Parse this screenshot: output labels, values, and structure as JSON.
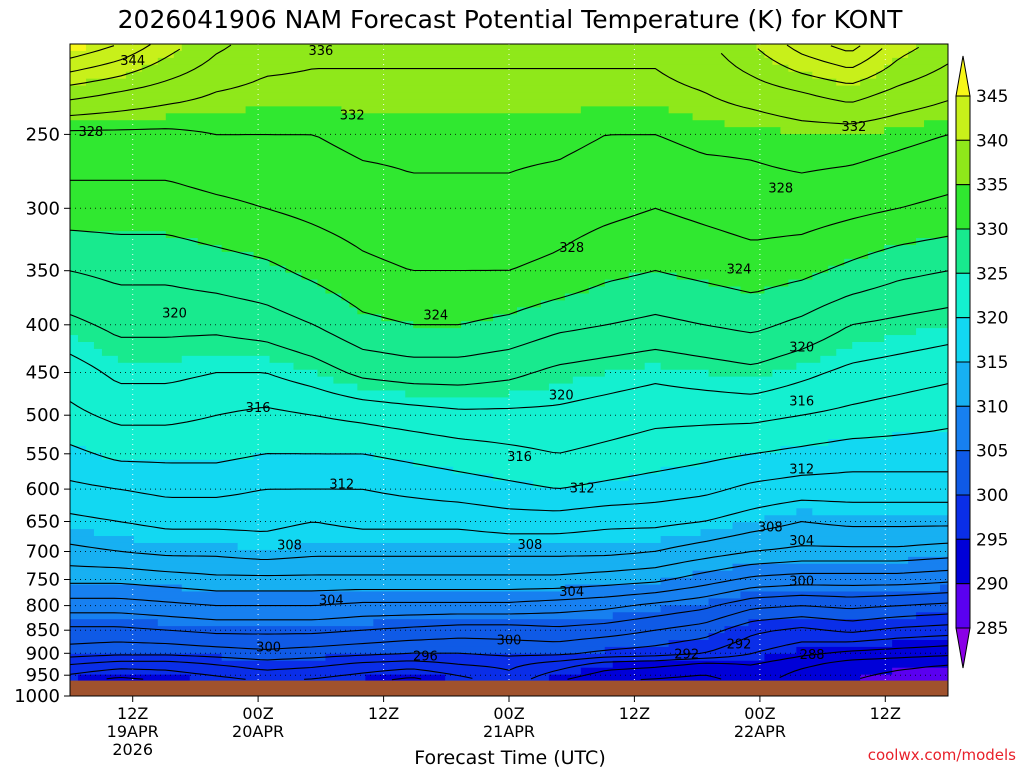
{
  "chart_data": {
    "type": "heatmap",
    "title": "2026041906 NAM Forecast Potential Temperature (K) for KONT",
    "xlabel": "Forecast Time (UTC)",
    "ylabel": "",
    "credit": "coolwx.com/models",
    "x_unit": "forecast hour",
    "xlim": [
      0,
      84
    ],
    "yaxis": "pressure (hPa), log scale, inverted",
    "ylim": [
      1000,
      200
    ],
    "y_ticks": [
      {
        "value": 250,
        "label": "250"
      },
      {
        "value": 300,
        "label": "300"
      },
      {
        "value": 350,
        "label": "350"
      },
      {
        "value": 400,
        "label": "400"
      },
      {
        "value": 450,
        "label": "450"
      },
      {
        "value": 500,
        "label": "500"
      },
      {
        "value": 550,
        "label": "550"
      },
      {
        "value": 600,
        "label": "600"
      },
      {
        "value": 650,
        "label": "650"
      },
      {
        "value": 700,
        "label": "700"
      },
      {
        "value": 750,
        "label": "750"
      },
      {
        "value": 800,
        "label": "800"
      },
      {
        "value": 850,
        "label": "850"
      },
      {
        "value": 900,
        "label": "900"
      },
      {
        "value": 950,
        "label": "950"
      },
      {
        "value": 1000,
        "label": "1000"
      }
    ],
    "x_ticks": [
      {
        "hour": 6,
        "lines": [
          "12Z",
          "19APR",
          "2026"
        ]
      },
      {
        "hour": 18,
        "lines": [
          "00Z",
          "20APR"
        ]
      },
      {
        "hour": 30,
        "lines": [
          "12Z"
        ]
      },
      {
        "hour": 42,
        "lines": [
          "00Z",
          "21APR"
        ]
      },
      {
        "hour": 54,
        "lines": [
          "12Z"
        ]
      },
      {
        "hour": 66,
        "lines": [
          "00Z",
          "22APR"
        ]
      },
      {
        "hour": 78,
        "lines": [
          "12Z"
        ]
      }
    ],
    "surface_pressure_hpa": 965,
    "colorbar": {
      "labels": [
        "285",
        "290",
        "295",
        "300",
        "305",
        "310",
        "315",
        "320",
        "325",
        "330",
        "335",
        "340",
        "345"
      ],
      "levels": [
        285,
        290,
        295,
        300,
        305,
        310,
        315,
        320,
        325,
        330,
        335,
        340,
        345
      ],
      "colors": [
        "#8a00e6",
        "#5a00f0",
        "#0000d8",
        "#0a2ee8",
        "#0f5ae6",
        "#1780f0",
        "#17b0f2",
        "#12d8f2",
        "#14f0d0",
        "#18ea8e",
        "#30e830",
        "#8fe81a",
        "#c8f01a",
        "#f7f718"
      ]
    },
    "contour_interval_k": 2,
    "series": [
      {
        "values": [
          294.5,
          293,
          294,
          295,
          296,
          295.5,
          294.5,
          293,
          295,
          297,
          294,
          292,
          291.5,
          291,
          293,
          290.5,
          290,
          289,
          288.5
        ]
      },
      {
        "values": [
          298,
          297,
          297,
          298,
          299,
          298.5,
          297.5,
          297,
          298,
          298.5,
          297,
          295,
          294.5,
          293.5,
          294,
          292.5,
          291,
          290.5,
          290
        ]
      },
      {
        "values": [
          301,
          300.5,
          300.5,
          301,
          301.5,
          301,
          300.5,
          300,
          300,
          300.5,
          300.5,
          299.5,
          299,
          298,
          296,
          294.5,
          293.5,
          293,
          292.5
        ]
      },
      {
        "values": [
          303.5,
          303.5,
          304,
          304.5,
          304.5,
          304.5,
          304,
          303.5,
          303,
          303,
          303.5,
          303,
          302,
          301,
          298.5,
          297.5,
          298.5,
          297.5,
          297
        ]
      },
      {
        "values": [
          307,
          307,
          307.5,
          308,
          308,
          308,
          307.5,
          307.5,
          307.5,
          307.5,
          307,
          306.5,
          305.5,
          304.5,
          302.5,
          302,
          302.5,
          302,
          301.5
        ]
      },
      {
        "values": [
          310.5,
          310.5,
          311,
          311.5,
          311.5,
          311.5,
          311.5,
          311.5,
          311.5,
          311.5,
          311.5,
          311,
          310.5,
          309,
          307.5,
          307,
          307,
          307,
          306.5
        ]
      },
      {
        "values": [
          313.5,
          314,
          314.5,
          314.5,
          315,
          314.5,
          314.5,
          314.5,
          314.5,
          314.5,
          314.5,
          314.5,
          314,
          313,
          312,
          311.5,
          311.5,
          311.5,
          311
        ]
      },
      {
        "values": [
          315.5,
          316,
          316.5,
          316.5,
          316.5,
          316,
          316.5,
          316.5,
          316.5,
          317,
          317,
          316.5,
          316.5,
          316,
          315,
          314,
          314.5,
          314.5,
          314.5
        ]
      },
      {
        "values": [
          317.5,
          318,
          318.5,
          318.5,
          318,
          318,
          318,
          318.5,
          319,
          319.5,
          320,
          319.5,
          319,
          318.5,
          317.5,
          317,
          317,
          317,
          317
        ]
      },
      {
        "values": [
          319.5,
          320.5,
          320.5,
          320.5,
          320,
          320,
          320,
          320.5,
          321,
          321.5,
          322,
          321.5,
          321,
          320.5,
          320,
          319.5,
          319,
          319,
          319
        ]
      },
      {
        "values": [
          321.5,
          322.5,
          322.5,
          322,
          321.5,
          322,
          322.5,
          323,
          323.5,
          323.5,
          323.5,
          323,
          322.5,
          322.5,
          322.5,
          322,
          321.5,
          321,
          320.5
        ]
      },
      {
        "values": [
          323,
          324.5,
          324.5,
          324,
          324,
          325,
          326.5,
          327,
          327,
          326.5,
          325.5,
          325,
          324.5,
          325,
          325.5,
          324.5,
          323.5,
          323,
          322.5
        ]
      },
      {
        "values": [
          325.5,
          326.5,
          326.5,
          326.5,
          327,
          328,
          329.5,
          330,
          330,
          329.5,
          328.5,
          328,
          327.5,
          328,
          328.5,
          327.5,
          326,
          325.5,
          325
        ]
      },
      {
        "values": [
          328,
          328.5,
          328.5,
          329,
          329.5,
          330.5,
          331.5,
          332,
          332,
          332,
          331.5,
          330.5,
          330,
          330.5,
          331,
          330.5,
          329.5,
          328.5,
          328
        ]
      },
      {
        "values": [
          331,
          331,
          331,
          331.5,
          332,
          332.5,
          333,
          333.5,
          333.5,
          333.5,
          333,
          332.5,
          332,
          332.5,
          333,
          333,
          332.5,
          332,
          331.5
        ]
      },
      {
        "values": [
          333.5,
          333.5,
          333.5,
          334,
          334,
          334,
          334.5,
          334.5,
          334.5,
          334.5,
          334.5,
          334,
          334,
          334.5,
          334.5,
          335,
          335,
          334.5,
          334
        ]
      },
      {
        "values": [
          339,
          338,
          337,
          336,
          335.5,
          335.5,
          335.5,
          335.5,
          335.5,
          335.5,
          335.5,
          335.5,
          335.5,
          336,
          337,
          338,
          339,
          337.5,
          336.5
        ]
      },
      {
        "values": [
          346,
          344,
          341,
          338.5,
          337,
          336.5,
          336.5,
          336.5,
          336.5,
          336.5,
          336.5,
          336.5,
          336.5,
          337.5,
          340,
          343,
          345,
          341,
          339
        ]
      }
    ],
    "series_pressure_levels_hpa": [
      965,
      925,
      900,
      850,
      800,
      750,
      700,
      650,
      600,
      550,
      500,
      450,
      400,
      350,
      300,
      250,
      225,
      200
    ],
    "series_forecast_hours": [
      0,
      4.6667,
      9.3333,
      14,
      18.6667,
      23.3333,
      28,
      32.6667,
      37.3333,
      42,
      46.6667,
      51.3333,
      56,
      60.6667,
      65.3333,
      70,
      74.6667,
      79.3333,
      84
    ],
    "contour_labels": [
      {
        "text": "344",
        "hour": 6,
        "p": 208
      },
      {
        "text": "336",
        "hour": 24,
        "p": 203
      },
      {
        "text": "332",
        "hour": 27,
        "p": 238
      },
      {
        "text": "332",
        "hour": 75,
        "p": 245
      },
      {
        "text": "328",
        "hour": 2,
        "p": 248
      },
      {
        "text": "328",
        "hour": 68,
        "p": 285
      },
      {
        "text": "328",
        "hour": 48,
        "p": 330
      },
      {
        "text": "324",
        "hour": 64,
        "p": 348
      },
      {
        "text": "324",
        "hour": 35,
        "p": 390
      },
      {
        "text": "320",
        "hour": 10,
        "p": 388
      },
      {
        "text": "320",
        "hour": 70,
        "p": 422
      },
      {
        "text": "320",
        "hour": 47,
        "p": 475
      },
      {
        "text": "316",
        "hour": 18,
        "p": 490
      },
      {
        "text": "316",
        "hour": 70,
        "p": 482
      },
      {
        "text": "316",
        "hour": 43,
        "p": 553
      },
      {
        "text": "312",
        "hour": 26,
        "p": 592
      },
      {
        "text": "312",
        "hour": 49,
        "p": 598
      },
      {
        "text": "312",
        "hour": 70,
        "p": 570
      },
      {
        "text": "308",
        "hour": 21,
        "p": 688
      },
      {
        "text": "308",
        "hour": 44,
        "p": 687
      },
      {
        "text": "308",
        "hour": 67,
        "p": 658
      },
      {
        "text": "304",
        "hour": 25,
        "p": 788
      },
      {
        "text": "304",
        "hour": 48,
        "p": 772
      },
      {
        "text": "304",
        "hour": 70,
        "p": 680
      },
      {
        "text": "300",
        "hour": 19,
        "p": 885
      },
      {
        "text": "300",
        "hour": 42,
        "p": 870
      },
      {
        "text": "300",
        "hour": 70,
        "p": 752
      },
      {
        "text": "296",
        "hour": 34,
        "p": 905
      },
      {
        "text": "292",
        "hour": 59,
        "p": 900
      },
      {
        "text": "292",
        "hour": 64,
        "p": 878
      },
      {
        "text": "288",
        "hour": 71,
        "p": 902
      }
    ]
  }
}
